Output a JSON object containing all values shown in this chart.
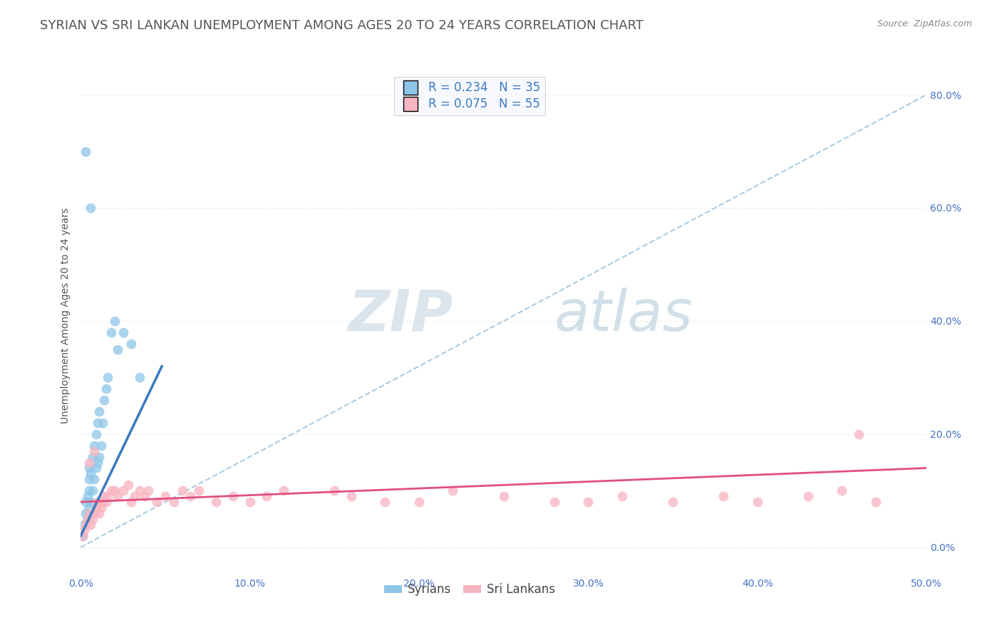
{
  "title": "SYRIAN VS SRI LANKAN UNEMPLOYMENT AMONG AGES 20 TO 24 YEARS CORRELATION CHART",
  "source": "Source: ZipAtlas.com",
  "ylabel": "Unemployment Among Ages 20 to 24 years",
  "xlim": [
    0.0,
    0.5
  ],
  "ylim": [
    -0.05,
    0.87
  ],
  "syrian_R": 0.234,
  "syrian_N": 35,
  "srilankan_R": 0.075,
  "srilankan_N": 55,
  "syrian_color": "#8ec6e8",
  "srilankan_color": "#f8b4c0",
  "syrian_line_color": "#3a7abf",
  "srilankan_line_color": "#e05080",
  "dashed_line_color": "#aacce0",
  "background_color": "#ffffff",
  "grid_color": "#e0e0e0",
  "legend_text_color": "#3a7abf",
  "title_color": "#555555",
  "syrian_points_x": [
    0.001,
    0.002,
    0.003,
    0.003,
    0.004,
    0.004,
    0.005,
    0.005,
    0.005,
    0.005,
    0.006,
    0.006,
    0.007,
    0.007,
    0.008,
    0.008,
    0.009,
    0.009,
    0.01,
    0.01,
    0.011,
    0.011,
    0.012,
    0.013,
    0.014,
    0.015,
    0.016,
    0.018,
    0.02,
    0.022,
    0.025,
    0.03,
    0.035,
    0.003,
    0.006
  ],
  "syrian_points_y": [
    0.02,
    0.04,
    0.06,
    0.08,
    0.05,
    0.09,
    0.07,
    0.1,
    0.12,
    0.14,
    0.08,
    0.13,
    0.1,
    0.16,
    0.12,
    0.18,
    0.14,
    0.2,
    0.15,
    0.22,
    0.16,
    0.24,
    0.18,
    0.22,
    0.26,
    0.28,
    0.3,
    0.38,
    0.4,
    0.35,
    0.38,
    0.36,
    0.3,
    0.7,
    0.6
  ],
  "srilankan_points_x": [
    0.001,
    0.002,
    0.003,
    0.004,
    0.005,
    0.006,
    0.007,
    0.008,
    0.009,
    0.01,
    0.011,
    0.012,
    0.013,
    0.014,
    0.015,
    0.016,
    0.018,
    0.02,
    0.022,
    0.025,
    0.028,
    0.03,
    0.032,
    0.035,
    0.038,
    0.04,
    0.045,
    0.05,
    0.055,
    0.06,
    0.065,
    0.07,
    0.08,
    0.09,
    0.1,
    0.11,
    0.12,
    0.15,
    0.16,
    0.18,
    0.2,
    0.22,
    0.25,
    0.28,
    0.3,
    0.32,
    0.35,
    0.38,
    0.4,
    0.43,
    0.45,
    0.46,
    0.47,
    0.005,
    0.008
  ],
  "srilankan_points_y": [
    0.02,
    0.03,
    0.04,
    0.05,
    0.06,
    0.04,
    0.05,
    0.06,
    0.07,
    0.08,
    0.06,
    0.07,
    0.08,
    0.09,
    0.08,
    0.09,
    0.1,
    0.1,
    0.09,
    0.1,
    0.11,
    0.08,
    0.09,
    0.1,
    0.09,
    0.1,
    0.08,
    0.09,
    0.08,
    0.1,
    0.09,
    0.1,
    0.08,
    0.09,
    0.08,
    0.09,
    0.1,
    0.1,
    0.09,
    0.08,
    0.08,
    0.1,
    0.09,
    0.08,
    0.08,
    0.09,
    0.08,
    0.09,
    0.08,
    0.09,
    0.1,
    0.2,
    0.08,
    0.15,
    0.17
  ],
  "syrian_line_x": [
    0.0,
    0.048
  ],
  "syrian_line_y": [
    0.02,
    0.32
  ],
  "srilankan_line_x": [
    0.0,
    0.5
  ],
  "srilankan_line_y": [
    0.08,
    0.14
  ],
  "dashed_line_x": [
    0.0,
    0.5
  ],
  "dashed_line_y": [
    0.0,
    0.8
  ],
  "watermark_zip": "ZIP",
  "watermark_atlas": "atlas",
  "title_fontsize": 13,
  "axis_fontsize": 10,
  "legend_fontsize": 12
}
